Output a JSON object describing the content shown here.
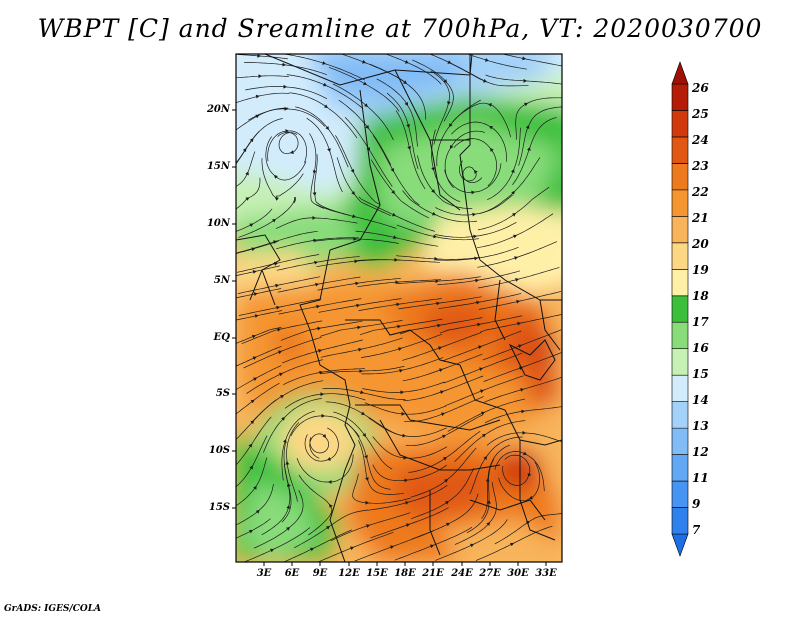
{
  "title": "WBPT [C] and Sreamline at 700hPa, VT: 2020030700",
  "credit": "GrADS: IGES/COLA",
  "map": {
    "lat_labels": [
      "20N",
      "15N",
      "10N",
      "5N",
      "EQ",
      "5S",
      "10S",
      "15S"
    ],
    "lon_labels": [
      "3E",
      "6E",
      "9E",
      "12E",
      "15E",
      "18E",
      "21E",
      "24E",
      "27E",
      "30E",
      "33E"
    ]
  },
  "colorbar": {
    "labels": [
      "7",
      "9",
      "11",
      "12",
      "13",
      "14",
      "15",
      "16",
      "17",
      "18",
      "19",
      "20",
      "21",
      "22",
      "23",
      "24",
      "25",
      "26"
    ],
    "colors": [
      "#1e6ee6",
      "#2f82ee",
      "#4795f2",
      "#63a8f4",
      "#82bcf6",
      "#a3d1f8",
      "#d2ecfc",
      "#c6f0b4",
      "#88dc7a",
      "#3cc03c",
      "#fff0a8",
      "#fcd885",
      "#f8b45a",
      "#f59630",
      "#ee7a1e",
      "#e05814",
      "#d03a0c",
      "#b41c08",
      "#a01004"
    ]
  }
}
